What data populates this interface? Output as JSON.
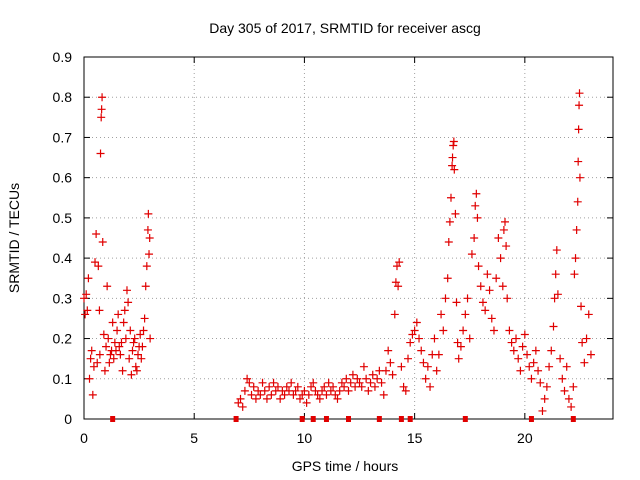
{
  "chart_data": {
    "type": "scatter",
    "title": "Day 305 of 2017, SRMTID for receiver ascg",
    "xlabel": "GPS time / hours",
    "ylabel": "SRMTID / TECUs",
    "xlim": [
      0,
      24
    ],
    "ylim": [
      0,
      0.9
    ],
    "xticks": [
      0,
      5,
      10,
      15,
      20
    ],
    "yticks": [
      0,
      0.1,
      0.2,
      0.3,
      0.4,
      0.5,
      0.6,
      0.7,
      0.8,
      0.9
    ],
    "xtick_labels": [
      "0",
      "5",
      "10",
      "15",
      "20"
    ],
    "ytick_labels": [
      "0",
      "0.1",
      "0.2",
      "0.3",
      "0.4",
      "0.5",
      "0.6",
      "0.7",
      "0.8",
      "0.9"
    ],
    "grid": true,
    "marker": "+",
    "color": "#e00000",
    "series": [
      {
        "name": "SRMTID",
        "points": [
          [
            0.0,
            0.3
          ],
          [
            0.05,
            0.26
          ],
          [
            0.1,
            0.31
          ],
          [
            0.15,
            0.27
          ],
          [
            0.2,
            0.35
          ],
          [
            0.25,
            0.1
          ],
          [
            0.3,
            0.15
          ],
          [
            0.35,
            0.17
          ],
          [
            0.4,
            0.06
          ],
          [
            0.45,
            0.13
          ],
          [
            0.5,
            0.39
          ],
          [
            0.55,
            0.46
          ],
          [
            0.6,
            0.14
          ],
          [
            0.65,
            0.38
          ],
          [
            0.7,
            0.27
          ],
          [
            0.72,
            0.16
          ],
          [
            0.75,
            0.66
          ],
          [
            0.78,
            0.75
          ],
          [
            0.8,
            0.77
          ],
          [
            0.82,
            0.8
          ],
          [
            0.85,
            0.44
          ],
          [
            0.9,
            0.21
          ],
          [
            0.95,
            0.12
          ],
          [
            1.0,
            0.18
          ],
          [
            1.05,
            0.33
          ],
          [
            1.1,
            0.2
          ],
          [
            1.15,
            0.14
          ],
          [
            1.2,
            0.16
          ],
          [
            1.25,
            0.17
          ],
          [
            1.3,
            0.24
          ],
          [
            1.35,
            0.15
          ],
          [
            1.4,
            0.19
          ],
          [
            1.45,
            0.17
          ],
          [
            1.5,
            0.22
          ],
          [
            1.55,
            0.26
          ],
          [
            1.6,
            0.18
          ],
          [
            1.65,
            0.16
          ],
          [
            1.7,
            0.19
          ],
          [
            1.75,
            0.12
          ],
          [
            1.8,
            0.24
          ],
          [
            1.85,
            0.27
          ],
          [
            1.9,
            0.2
          ],
          [
            1.95,
            0.32
          ],
          [
            2.0,
            0.29
          ],
          [
            2.05,
            0.15
          ],
          [
            2.1,
            0.22
          ],
          [
            2.15,
            0.11
          ],
          [
            2.2,
            0.17
          ],
          [
            2.25,
            0.19
          ],
          [
            2.3,
            0.2
          ],
          [
            2.35,
            0.13
          ],
          [
            2.4,
            0.12
          ],
          [
            2.45,
            0.16
          ],
          [
            2.5,
            0.18
          ],
          [
            2.55,
            0.21
          ],
          [
            2.6,
            0.15
          ],
          [
            2.65,
            0.18
          ],
          [
            2.7,
            0.22
          ],
          [
            2.75,
            0.25
          ],
          [
            2.8,
            0.33
          ],
          [
            2.85,
            0.38
          ],
          [
            2.9,
            0.47
          ],
          [
            2.92,
            0.51
          ],
          [
            2.95,
            0.41
          ],
          [
            2.98,
            0.45
          ],
          [
            3.0,
            0.2
          ],
          [
            7.0,
            0.04
          ],
          [
            7.1,
            0.05
          ],
          [
            7.2,
            0.03
          ],
          [
            7.3,
            0.07
          ],
          [
            7.4,
            0.1
          ],
          [
            7.5,
            0.09
          ],
          [
            7.6,
            0.06
          ],
          [
            7.7,
            0.08
          ],
          [
            7.8,
            0.05
          ],
          [
            7.9,
            0.07
          ],
          [
            8.0,
            0.06
          ],
          [
            8.1,
            0.09
          ],
          [
            8.2,
            0.07
          ],
          [
            8.3,
            0.05
          ],
          [
            8.4,
            0.08
          ],
          [
            8.5,
            0.06
          ],
          [
            8.6,
            0.09
          ],
          [
            8.7,
            0.07
          ],
          [
            8.8,
            0.08
          ],
          [
            8.9,
            0.05
          ],
          [
            9.0,
            0.07
          ],
          [
            9.1,
            0.06
          ],
          [
            9.2,
            0.08
          ],
          [
            9.3,
            0.07
          ],
          [
            9.4,
            0.09
          ],
          [
            9.5,
            0.06
          ],
          [
            9.6,
            0.07
          ],
          [
            9.7,
            0.08
          ],
          [
            9.8,
            0.05
          ],
          [
            9.9,
            0.06
          ],
          [
            10.0,
            0.07
          ],
          [
            10.1,
            0.04
          ],
          [
            10.2,
            0.06
          ],
          [
            10.3,
            0.08
          ],
          [
            10.4,
            0.09
          ],
          [
            10.5,
            0.07
          ],
          [
            10.6,
            0.06
          ],
          [
            10.7,
            0.05
          ],
          [
            10.8,
            0.07
          ],
          [
            10.9,
            0.08
          ],
          [
            11.0,
            0.06
          ],
          [
            11.1,
            0.09
          ],
          [
            11.2,
            0.07
          ],
          [
            11.3,
            0.08
          ],
          [
            11.4,
            0.06
          ],
          [
            11.5,
            0.05
          ],
          [
            11.6,
            0.07
          ],
          [
            11.7,
            0.09
          ],
          [
            11.8,
            0.08
          ],
          [
            11.9,
            0.1
          ],
          [
            12.0,
            0.07
          ],
          [
            12.1,
            0.09
          ],
          [
            12.2,
            0.11
          ],
          [
            12.3,
            0.08
          ],
          [
            12.4,
            0.1
          ],
          [
            12.5,
            0.09
          ],
          [
            12.6,
            0.08
          ],
          [
            12.7,
            0.13
          ],
          [
            12.8,
            0.1
          ],
          [
            12.9,
            0.07
          ],
          [
            13.0,
            0.09
          ],
          [
            13.1,
            0.11
          ],
          [
            13.2,
            0.08
          ],
          [
            13.3,
            0.1
          ],
          [
            13.4,
            0.12
          ],
          [
            13.5,
            0.09
          ],
          [
            13.6,
            0.06
          ],
          [
            13.7,
            0.12
          ],
          [
            13.8,
            0.17
          ],
          [
            13.9,
            0.14
          ],
          [
            14.0,
            0.11
          ],
          [
            14.1,
            0.26
          ],
          [
            14.15,
            0.34
          ],
          [
            14.2,
            0.38
          ],
          [
            14.25,
            0.33
          ],
          [
            14.3,
            0.39
          ],
          [
            14.4,
            0.13
          ],
          [
            14.5,
            0.08
          ],
          [
            14.6,
            0.07
          ],
          [
            14.7,
            0.15
          ],
          [
            14.8,
            0.19
          ],
          [
            14.9,
            0.21
          ],
          [
            15.0,
            0.22
          ],
          [
            15.1,
            0.24
          ],
          [
            15.2,
            0.2
          ],
          [
            15.3,
            0.17
          ],
          [
            15.4,
            0.14
          ],
          [
            15.5,
            0.1
          ],
          [
            15.6,
            0.13
          ],
          [
            15.7,
            0.08
          ],
          [
            15.8,
            0.16
          ],
          [
            15.9,
            0.2
          ],
          [
            16.0,
            0.12
          ],
          [
            16.1,
            0.16
          ],
          [
            16.2,
            0.26
          ],
          [
            16.3,
            0.22
          ],
          [
            16.4,
            0.3
          ],
          [
            16.5,
            0.35
          ],
          [
            16.55,
            0.44
          ],
          [
            16.6,
            0.49
          ],
          [
            16.65,
            0.55
          ],
          [
            16.7,
            0.63
          ],
          [
            16.72,
            0.65
          ],
          [
            16.75,
            0.68
          ],
          [
            16.78,
            0.69
          ],
          [
            16.8,
            0.62
          ],
          [
            16.85,
            0.51
          ],
          [
            16.9,
            0.29
          ],
          [
            16.95,
            0.19
          ],
          [
            17.0,
            0.15
          ],
          [
            17.1,
            0.18
          ],
          [
            17.2,
            0.22
          ],
          [
            17.3,
            0.26
          ],
          [
            17.4,
            0.3
          ],
          [
            17.5,
            0.2
          ],
          [
            17.6,
            0.41
          ],
          [
            17.7,
            0.45
          ],
          [
            17.75,
            0.53
          ],
          [
            17.8,
            0.56
          ],
          [
            17.85,
            0.5
          ],
          [
            17.9,
            0.38
          ],
          [
            18.0,
            0.33
          ],
          [
            18.1,
            0.29
          ],
          [
            18.2,
            0.27
          ],
          [
            18.3,
            0.36
          ],
          [
            18.4,
            0.32
          ],
          [
            18.5,
            0.25
          ],
          [
            18.6,
            0.22
          ],
          [
            18.7,
            0.35
          ],
          [
            18.8,
            0.45
          ],
          [
            18.9,
            0.4
          ],
          [
            19.0,
            0.33
          ],
          [
            19.05,
            0.47
          ],
          [
            19.1,
            0.49
          ],
          [
            19.15,
            0.43
          ],
          [
            19.2,
            0.3
          ],
          [
            19.3,
            0.22
          ],
          [
            19.4,
            0.19
          ],
          [
            19.5,
            0.17
          ],
          [
            19.6,
            0.2
          ],
          [
            19.7,
            0.15
          ],
          [
            19.8,
            0.12
          ],
          [
            19.9,
            0.18
          ],
          [
            20.0,
            0.21
          ],
          [
            20.1,
            0.16
          ],
          [
            20.2,
            0.13
          ],
          [
            20.3,
            0.1
          ],
          [
            20.4,
            0.14
          ],
          [
            20.5,
            0.17
          ],
          [
            20.6,
            0.12
          ],
          [
            20.7,
            0.09
          ],
          [
            20.8,
            0.02
          ],
          [
            20.9,
            0.05
          ],
          [
            21.0,
            0.08
          ],
          [
            21.1,
            0.13
          ],
          [
            21.2,
            0.17
          ],
          [
            21.3,
            0.23
          ],
          [
            21.35,
            0.3
          ],
          [
            21.4,
            0.36
          ],
          [
            21.45,
            0.42
          ],
          [
            21.5,
            0.31
          ],
          [
            21.6,
            0.15
          ],
          [
            21.7,
            0.1
          ],
          [
            21.8,
            0.07
          ],
          [
            21.9,
            0.13
          ],
          [
            22.0,
            0.05
          ],
          [
            22.1,
            0.03
          ],
          [
            22.2,
            0.08
          ],
          [
            22.25,
            0.36
          ],
          [
            22.3,
            0.4
          ],
          [
            22.35,
            0.47
          ],
          [
            22.4,
            0.54
          ],
          [
            22.42,
            0.64
          ],
          [
            22.44,
            0.72
          ],
          [
            22.46,
            0.78
          ],
          [
            22.48,
            0.81
          ],
          [
            22.5,
            0.6
          ],
          [
            22.55,
            0.28
          ],
          [
            22.6,
            0.19
          ],
          [
            22.7,
            0.14
          ],
          [
            22.8,
            0.2
          ],
          [
            22.9,
            0.26
          ],
          [
            23.0,
            0.16
          ]
        ]
      }
    ],
    "zero_markers": [
      1.3,
      6.9,
      9.9,
      10.4,
      11.0,
      12.0,
      13.4,
      14.4,
      14.8,
      17.3,
      20.3,
      22.2
    ]
  }
}
